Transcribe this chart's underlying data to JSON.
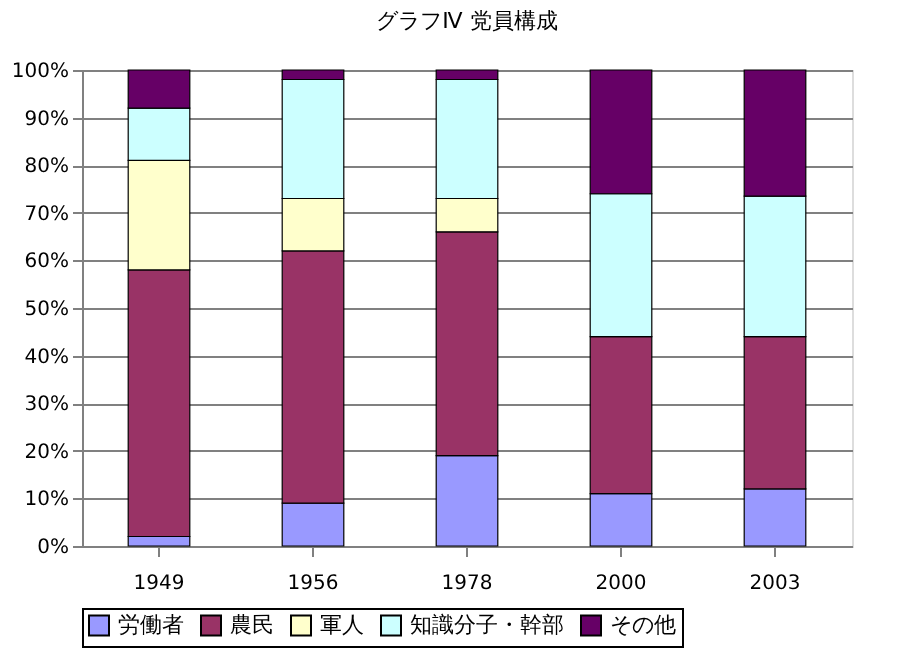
{
  "chart_data": {
    "type": "bar",
    "title": "グラフⅣ 党員構成",
    "stacked": true,
    "categories": [
      "1949",
      "1956",
      "1978",
      "2000",
      "2003"
    ],
    "series": [
      {
        "name": "労働者",
        "color": "#9999ff",
        "values": [
          2,
          9,
          19,
          11,
          12
        ]
      },
      {
        "name": "農民",
        "color": "#993366",
        "values": [
          56,
          53,
          47,
          33,
          32
        ]
      },
      {
        "name": "軍人",
        "color": "#ffffcc",
        "values": [
          23,
          11,
          7,
          null,
          null
        ]
      },
      {
        "name": "知識分子・幹部",
        "color": "#ccffff",
        "values": [
          11,
          25,
          25,
          30,
          29.5
        ]
      },
      {
        "name": "その他",
        "color": "#660066",
        "values": [
          8,
          2,
          2,
          26,
          26.5
        ]
      }
    ],
    "ylim": [
      0,
      100
    ],
    "yticks": [
      {
        "value": 0,
        "label": "0%"
      },
      {
        "value": 10,
        "label": "10%"
      },
      {
        "value": 20,
        "label": "20%"
      },
      {
        "value": 30,
        "label": "30%"
      },
      {
        "value": 40,
        "label": "40%"
      },
      {
        "value": 50,
        "label": "50%"
      },
      {
        "value": 60,
        "label": "60%"
      },
      {
        "value": 70,
        "label": "70%"
      },
      {
        "value": 80,
        "label": "80%"
      },
      {
        "value": 90,
        "label": "90%"
      },
      {
        "value": 100,
        "label": "100%"
      }
    ],
    "grid": "y",
    "legend": "bottom"
  }
}
